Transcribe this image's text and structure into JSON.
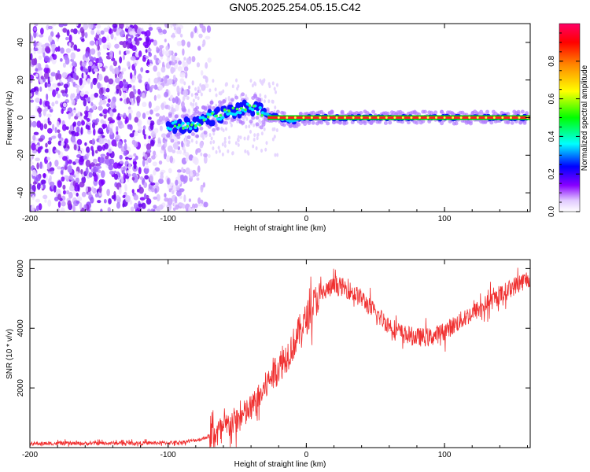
{
  "title": "GN05.2025.254.05.15.C42",
  "chart_data": [
    {
      "type": "heatmap",
      "title": "GN05.2025.254.05.15.C42",
      "xlabel": "Height of straight line (km)",
      "ylabel": "Frequency (Hz)",
      "xlim": [
        -200,
        162
      ],
      "ylim": [
        -50,
        50
      ],
      "xticks": [
        -200,
        -100,
        0,
        100
      ],
      "yticks": [
        -40,
        -20,
        0,
        20,
        40
      ],
      "colorbar": {
        "label": "Normalized spectral amplitude",
        "range": [
          0,
          1
        ],
        "ticks": [
          "0.0",
          "0.2",
          "0.4",
          "0.6",
          "0.8"
        ],
        "colormap": [
          "#ffffff",
          "#8800ff",
          "#0000ff",
          "#00ffff",
          "#00ff00",
          "#ffff00",
          "#ff8800",
          "#ff0000",
          "#ff0088"
        ]
      },
      "ridge": {
        "x": [
          -100,
          -90,
          -80,
          -70,
          -60,
          -50,
          -40,
          -30,
          -20,
          -10,
          0,
          10,
          20,
          40,
          60,
          80,
          100,
          120,
          140,
          162
        ],
        "y": [
          -5,
          -4,
          -3,
          0,
          2,
          4,
          5,
          2,
          0,
          -2,
          0,
          0,
          0,
          0,
          0,
          0,
          0,
          0,
          0,
          0
        ]
      },
      "noise_region_x": [
        -200,
        -80
      ]
    },
    {
      "type": "line",
      "xlabel": "Height of straight line (km)",
      "ylabel": "SNR (10 * v/v)",
      "xlim": [
        -200,
        162
      ],
      "ylim": [
        0,
        6300
      ],
      "xticks": [
        -200,
        -100,
        0,
        100
      ],
      "yticks": [
        2000,
        4000,
        6000
      ],
      "color": "#f03030",
      "series": [
        {
          "x": [
            -200,
            -180,
            -160,
            -140,
            -120,
            -100,
            -90,
            -80,
            -75,
            -70,
            -65,
            -60,
            -55,
            -50,
            -45,
            -40,
            -35,
            -30,
            -25,
            -20,
            -15,
            -10,
            -5,
            0,
            5,
            10,
            15,
            20,
            25,
            30,
            40,
            50,
            60,
            70,
            80,
            90,
            100,
            110,
            120,
            130,
            140,
            150,
            162
          ],
          "y": [
            130,
            140,
            140,
            150,
            150,
            160,
            180,
            250,
            300,
            400,
            500,
            600,
            800,
            900,
            1100,
            1300,
            1600,
            2000,
            2400,
            2700,
            3000,
            3400,
            3900,
            4300,
            4800,
            5100,
            5300,
            5400,
            5400,
            5300,
            5000,
            4500,
            4100,
            3800,
            3700,
            3700,
            3900,
            4200,
            4500,
            4800,
            5100,
            5400,
            5700
          ]
        }
      ]
    }
  ]
}
